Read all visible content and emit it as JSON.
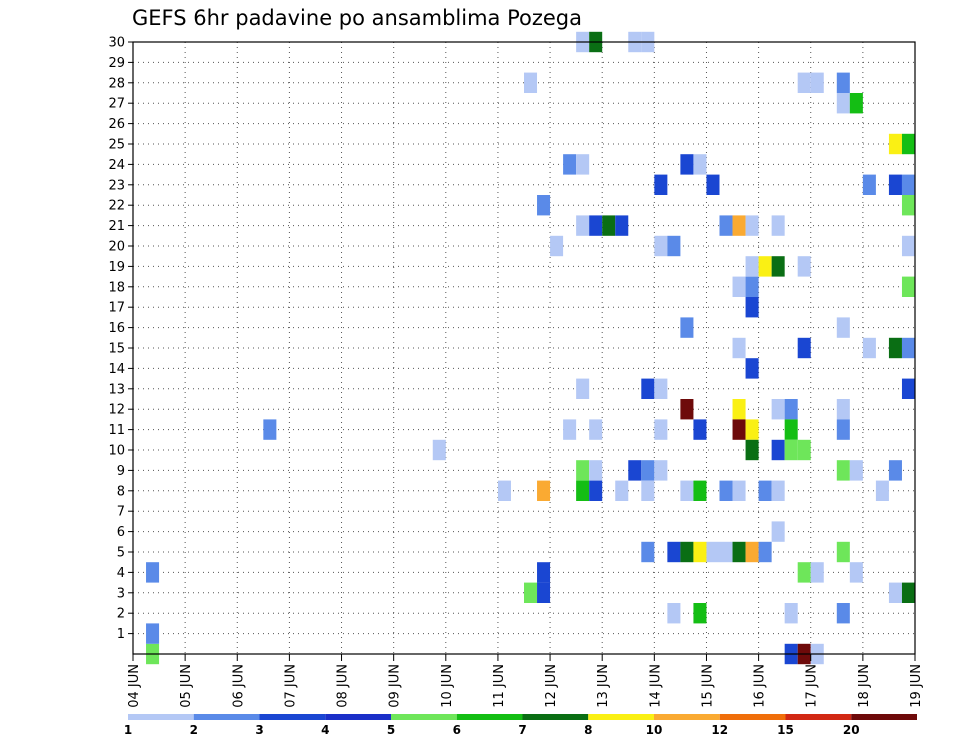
{
  "chart_data": {
    "type": "heatmap",
    "title": "GEFS 6hr padavine po ansamblima Pozega",
    "x_ticks": [
      "04 JUN",
      "05 JUN",
      "06 JUN",
      "07 JUN",
      "08 JUN",
      "09 JUN",
      "10 JUN",
      "11 JUN",
      "12 JUN",
      "13 JUN",
      "14 JUN",
      "15 JUN",
      "16 JUN",
      "17 JUN",
      "18 JUN",
      "19 JUN"
    ],
    "x_range": [
      4,
      19
    ],
    "y_ticks": [
      1,
      2,
      3,
      4,
      5,
      6,
      7,
      8,
      9,
      10,
      11,
      12,
      13,
      14,
      15,
      16,
      17,
      18,
      19,
      20,
      21,
      22,
      23,
      24,
      25,
      26,
      27,
      28,
      29,
      30
    ],
    "y_range": [
      0,
      30
    ],
    "grid": true,
    "legend_position": "bottom",
    "color_scale": {
      "labels": [
        "1",
        "2",
        "3",
        "4",
        "5",
        "6",
        "7",
        "8",
        "10",
        "12",
        "15",
        "20"
      ],
      "colors": [
        "#b4c8f5",
        "#5a8ae8",
        "#1a46d2",
        "#1a2fc8",
        "#6ee65a",
        "#14be14",
        "#0a6e14",
        "#faf014",
        "#faaa32",
        "#f06e0a",
        "#d22814",
        "#6e0a0a"
      ]
    },
    "cells": [
      {
        "member": 0,
        "day": 4.25,
        "level": 5
      },
      {
        "member": 1,
        "day": 4.25,
        "level": 2
      },
      {
        "member": 4,
        "day": 4.25,
        "level": 2
      },
      {
        "member": 11,
        "day": 6.5,
        "level": 2
      },
      {
        "member": 10,
        "day": 9.75,
        "level": 1
      },
      {
        "member": 28,
        "day": 11.5,
        "level": 1
      },
      {
        "member": 8,
        "day": 11.0,
        "level": 1
      },
      {
        "member": 3,
        "day": 11.5,
        "level": 5
      },
      {
        "member": 3,
        "day": 11.75,
        "level": 3
      },
      {
        "member": 4,
        "day": 11.75,
        "level": 3
      },
      {
        "member": 8,
        "day": 11.75,
        "level": 10
      },
      {
        "member": 22,
        "day": 11.75,
        "level": 2
      },
      {
        "member": 20,
        "day": 12.0,
        "level": 1
      },
      {
        "member": 24,
        "day": 12.25,
        "level": 2
      },
      {
        "member": 24,
        "day": 12.5,
        "level": 1
      },
      {
        "member": 11,
        "day": 12.25,
        "level": 1
      },
      {
        "member": 13,
        "day": 12.5,
        "level": 1
      },
      {
        "member": 21,
        "day": 12.5,
        "level": 1
      },
      {
        "member": 21,
        "day": 12.75,
        "level": 3
      },
      {
        "member": 21,
        "day": 13.0,
        "level": 7
      },
      {
        "member": 21,
        "day": 13.25,
        "level": 3
      },
      {
        "member": 30,
        "day": 12.5,
        "level": 1
      },
      {
        "member": 30,
        "day": 12.75,
        "level": 7
      },
      {
        "member": 9,
        "day": 12.5,
        "level": 5
      },
      {
        "member": 9,
        "day": 12.75,
        "level": 1
      },
      {
        "member": 8,
        "day": 12.5,
        "level": 6
      },
      {
        "member": 8,
        "day": 12.75,
        "level": 3
      },
      {
        "member": 11,
        "day": 12.75,
        "level": 1
      },
      {
        "member": 8,
        "day": 13.25,
        "level": 1
      },
      {
        "member": 30,
        "day": 13.5,
        "level": 1
      },
      {
        "member": 30,
        "day": 13.75,
        "level": 1
      },
      {
        "member": 9,
        "day": 13.5,
        "level": 3
      },
      {
        "member": 9,
        "day": 13.75,
        "level": 2
      },
      {
        "member": 9,
        "day": 14.0,
        "level": 1
      },
      {
        "member": 13,
        "day": 13.75,
        "level": 3
      },
      {
        "member": 13,
        "day": 14.0,
        "level": 1
      },
      {
        "member": 8,
        "day": 13.75,
        "level": 1
      },
      {
        "member": 5,
        "day": 13.75,
        "level": 2
      },
      {
        "member": 23,
        "day": 14.0,
        "level": 3
      },
      {
        "member": 20,
        "day": 14.0,
        "level": 1
      },
      {
        "member": 20,
        "day": 14.25,
        "level": 2
      },
      {
        "member": 11,
        "day": 14.0,
        "level": 1
      },
      {
        "member": 5,
        "day": 14.25,
        "level": 3
      },
      {
        "member": 5,
        "day": 14.5,
        "level": 7
      },
      {
        "member": 2,
        "day": 14.25,
        "level": 1
      },
      {
        "member": 24,
        "day": 14.5,
        "level": 3
      },
      {
        "member": 24,
        "day": 14.75,
        "level": 1
      },
      {
        "member": 16,
        "day": 14.5,
        "level": 2
      },
      {
        "member": 12,
        "day": 14.5,
        "level": 20
      },
      {
        "member": 8,
        "day": 14.5,
        "level": 1
      },
      {
        "member": 8,
        "day": 14.75,
        "level": 6
      },
      {
        "member": 5,
        "day": 14.75,
        "level": 8
      },
      {
        "member": 11,
        "day": 14.75,
        "level": 3
      },
      {
        "member": 2,
        "day": 14.75,
        "level": 6
      },
      {
        "member": 23,
        "day": 15.0,
        "level": 3
      },
      {
        "member": 5,
        "day": 15.0,
        "level": 1
      },
      {
        "member": 5,
        "day": 15.25,
        "level": 1
      },
      {
        "member": 21,
        "day": 15.25,
        "level": 2
      },
      {
        "member": 21,
        "day": 15.5,
        "level": 10
      },
      {
        "member": 21,
        "day": 15.75,
        "level": 1
      },
      {
        "member": 8,
        "day": 15.25,
        "level": 2
      },
      {
        "member": 8,
        "day": 15.5,
        "level": 1
      },
      {
        "member": 5,
        "day": 15.5,
        "level": 7
      },
      {
        "member": 5,
        "day": 15.75,
        "level": 10
      },
      {
        "member": 5,
        "day": 16.0,
        "level": 2
      },
      {
        "member": 18,
        "day": 15.5,
        "level": 1
      },
      {
        "member": 17,
        "day": 15.75,
        "level": 3
      },
      {
        "member": 18,
        "day": 15.75,
        "level": 2
      },
      {
        "member": 15,
        "day": 15.5,
        "level": 1
      },
      {
        "member": 14,
        "day": 15.75,
        "level": 3
      },
      {
        "member": 12,
        "day": 15.5,
        "level": 8
      },
      {
        "member": 11,
        "day": 15.5,
        "level": 20
      },
      {
        "member": 11,
        "day": 15.75,
        "level": 8
      },
      {
        "member": 10,
        "day": 15.75,
        "level": 7
      },
      {
        "member": 19,
        "day": 15.75,
        "level": 1
      },
      {
        "member": 19,
        "day": 16.0,
        "level": 8
      },
      {
        "member": 19,
        "day": 16.25,
        "level": 7
      },
      {
        "member": 21,
        "day": 16.25,
        "level": 1
      },
      {
        "member": 8,
        "day": 16.0,
        "level": 2
      },
      {
        "member": 8,
        "day": 16.25,
        "level": 1
      },
      {
        "member": 12,
        "day": 16.25,
        "level": 1
      },
      {
        "member": 12,
        "day": 16.5,
        "level": 2
      },
      {
        "member": 11,
        "day": 16.5,
        "level": 6
      },
      {
        "member": 10,
        "day": 16.25,
        "level": 3
      },
      {
        "member": 10,
        "day": 16.5,
        "level": 5
      },
      {
        "member": 10,
        "day": 16.75,
        "level": 5
      },
      {
        "member": 6,
        "day": 16.25,
        "level": 1
      },
      {
        "member": 2,
        "day": 16.5,
        "level": 1
      },
      {
        "member": 0,
        "day": 16.5,
        "level": 3
      },
      {
        "member": 0,
        "day": 16.75,
        "level": 20
      },
      {
        "member": 0,
        "day": 17.0,
        "level": 1
      },
      {
        "member": 15,
        "day": 16.75,
        "level": 3
      },
      {
        "member": 19,
        "day": 16.75,
        "level": 1
      },
      {
        "member": 28,
        "day": 16.75,
        "level": 1
      },
      {
        "member": 28,
        "day": 17.0,
        "level": 1
      },
      {
        "member": 4,
        "day": 16.75,
        "level": 5
      },
      {
        "member": 4,
        "day": 17.0,
        "level": 1
      },
      {
        "member": 5,
        "day": 17.5,
        "level": 5
      },
      {
        "member": 28,
        "day": 17.5,
        "level": 2
      },
      {
        "member": 27,
        "day": 17.5,
        "level": 1
      },
      {
        "member": 27,
        "day": 17.75,
        "level": 6
      },
      {
        "member": 16,
        "day": 17.5,
        "level": 1
      },
      {
        "member": 12,
        "day": 17.5,
        "level": 1
      },
      {
        "member": 11,
        "day": 17.5,
        "level": 2
      },
      {
        "member": 9,
        "day": 17.5,
        "level": 5
      },
      {
        "member": 9,
        "day": 17.75,
        "level": 1
      },
      {
        "member": 2,
        "day": 17.5,
        "level": 2
      },
      {
        "member": 4,
        "day": 17.75,
        "level": 1
      },
      {
        "member": 23,
        "day": 18.0,
        "level": 2
      },
      {
        "member": 15,
        "day": 18.0,
        "level": 1
      },
      {
        "member": 8,
        "day": 18.25,
        "level": 1
      },
      {
        "member": 25,
        "day": 18.5,
        "level": 8
      },
      {
        "member": 25,
        "day": 18.75,
        "level": 6
      },
      {
        "member": 23,
        "day": 18.5,
        "level": 3
      },
      {
        "member": 23,
        "day": 18.75,
        "level": 2
      },
      {
        "member": 22,
        "day": 18.75,
        "level": 5
      },
      {
        "member": 20,
        "day": 18.75,
        "level": 1
      },
      {
        "member": 18,
        "day": 18.75,
        "level": 5
      },
      {
        "member": 15,
        "day": 18.5,
        "level": 7
      },
      {
        "member": 15,
        "day": 18.75,
        "level": 2
      },
      {
        "member": 13,
        "day": 18.75,
        "level": 3
      },
      {
        "member": 9,
        "day": 18.5,
        "level": 2
      },
      {
        "member": 3,
        "day": 18.5,
        "level": 1
      },
      {
        "member": 3,
        "day": 18.75,
        "level": 7
      }
    ]
  }
}
